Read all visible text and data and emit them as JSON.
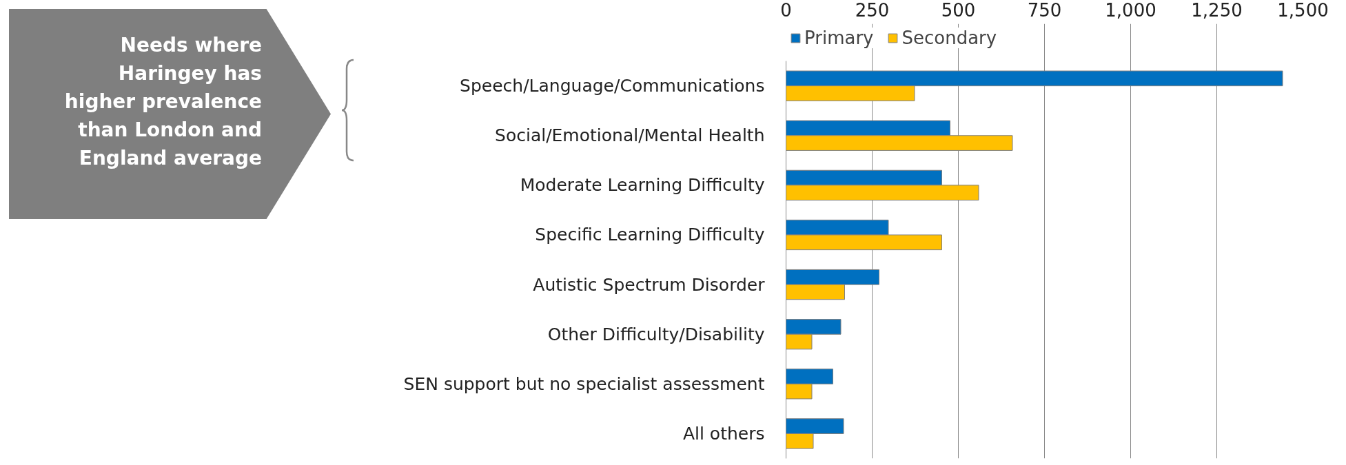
{
  "chart_data": {
    "type": "bar",
    "orientation": "horizontal",
    "categories": [
      "Speech/Language/Communications",
      "Social/Emotional/Mental Health",
      "Moderate Learning Difficulty",
      "Specific Learning Difficulty",
      "Autistic Spectrum Disorder",
      "Other Difficulty/Disability",
      "SEN support but no specialist assessment",
      "All others"
    ],
    "series": [
      {
        "name": "Primary",
        "color": "#0070c0",
        "values": [
          1441,
          476,
          452,
          297,
          270,
          159,
          136,
          167
        ]
      },
      {
        "name": "Secondary",
        "color": "#ffc000",
        "values": [
          373,
          657,
          559,
          452,
          170,
          75,
          75,
          79
        ]
      }
    ],
    "xlim": [
      0,
      1500
    ],
    "xticks": [
      0,
      {
        "value": 250,
        "label": "250"
      },
      {
        "value": 500,
        "label": "500"
      },
      {
        "value": 750,
        "label": "750"
      },
      {
        "value": 1000,
        "label": "1,000"
      },
      {
        "value": 1250,
        "label": "1,250"
      },
      {
        "value": 1500,
        "label": "1,500"
      }
    ],
    "grid": "x",
    "legend": "top",
    "annotations": [
      "Needs where Haringey has higher prevalence than London and England average"
    ]
  }
}
